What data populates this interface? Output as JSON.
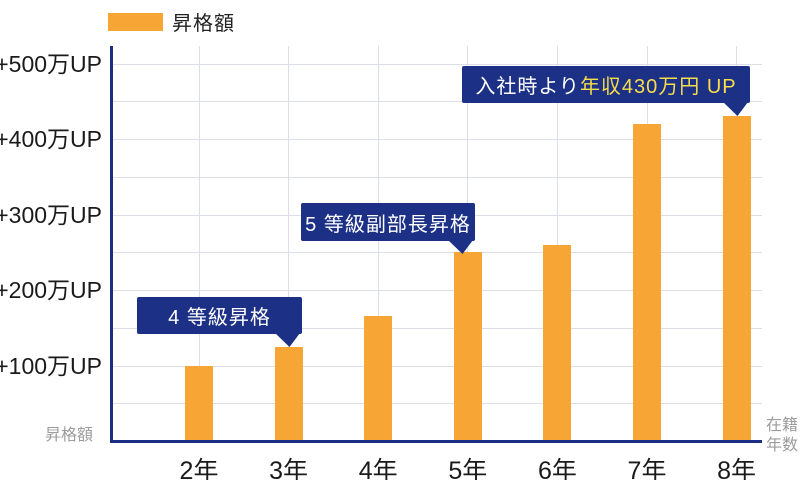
{
  "legend": {
    "label": "昇格額",
    "swatch_color": "#f7a535"
  },
  "axes": {
    "y_label": "昇格額",
    "x_label_line1": "在籍",
    "x_label_line2": "年数",
    "x_label": "在籍年数"
  },
  "annotations": [
    {
      "text": "4 等級昇格",
      "target": "3年"
    },
    {
      "text": "5 等級副部長昇格",
      "target": "5年"
    },
    {
      "text_prefix": "入社時より",
      "text_highlight": "年収430万円 UP",
      "target": "8年"
    }
  ],
  "chart_data": {
    "type": "bar",
    "title": "",
    "categories": [
      "2年",
      "3年",
      "4年",
      "5年",
      "6年",
      "7年",
      "8年"
    ],
    "series": [
      {
        "name": "昇格額",
        "values": [
          100,
          125,
          165,
          250,
          260,
          420,
          430
        ]
      }
    ],
    "unit": "万円",
    "xlabel": "在籍年数",
    "ylabel": "昇格額",
    "ylim": [
      0,
      520
    ],
    "y_ticks": [
      {
        "value": 100,
        "label": "+100万UP"
      },
      {
        "value": 200,
        "label": "+200万UP"
      },
      {
        "value": 300,
        "label": "+300万UP"
      },
      {
        "value": 400,
        "label": "+400万UP"
      },
      {
        "value": 500,
        "label": "+500万UP"
      }
    ],
    "gridline_interval": 50,
    "grid": true,
    "legend_position": "top-left",
    "bar_color": "#f7a535",
    "annotation_color": "#1c3085",
    "highlight_text_color": "#f9de4b"
  },
  "colors": {
    "bar": "#f7a535",
    "axis": "#1b2d80",
    "gridline": "#dcdfe9",
    "callout_bg": "#1c3085",
    "callout_highlight": "#f9de4b",
    "muted_label": "#9c9c9c",
    "tick_label": "#1a1a1a"
  }
}
